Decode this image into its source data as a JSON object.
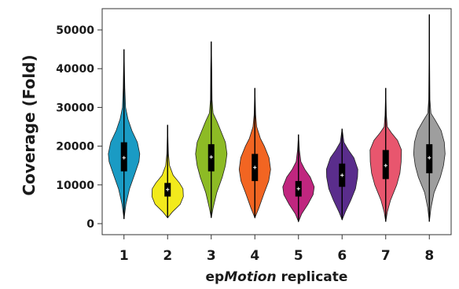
{
  "chart_data": {
    "type": "violin",
    "title": "",
    "xlabel_prefix": "ep",
    "xlabel_italic": "Motion",
    "xlabel_suffix": " replicate",
    "ylabel": "Coverage (Fold)",
    "ylim": [
      -2500,
      55000
    ],
    "yticks": [
      0,
      10000,
      20000,
      30000,
      40000,
      50000
    ],
    "ytick_labels": [
      "0",
      "10000",
      "20000",
      "30000",
      "40000",
      "50000"
    ],
    "grid": false,
    "categories": [
      "1",
      "2",
      "3",
      "4",
      "5",
      "6",
      "7",
      "8"
    ],
    "series": [
      {
        "category": "1",
        "color": "#1a9bc4",
        "min": 1200,
        "max": 45000,
        "q1": 13500,
        "median": 17000,
        "q3": 21000,
        "mean": 17000,
        "density": [
          [
            1200,
            0
          ],
          [
            5000,
            0.12
          ],
          [
            9000,
            0.35
          ],
          [
            13000,
            0.7
          ],
          [
            16000,
            0.95
          ],
          [
            18000,
            1.0
          ],
          [
            21000,
            0.85
          ],
          [
            24000,
            0.5
          ],
          [
            27000,
            0.25
          ],
          [
            30000,
            0.1
          ],
          [
            35000,
            0.05
          ],
          [
            40000,
            0.03
          ],
          [
            45000,
            0
          ]
        ]
      },
      {
        "category": "2",
        "color": "#f2ea1c",
        "min": 1500,
        "max": 25500,
        "q1": 7000,
        "median": 8500,
        "q3": 10500,
        "mean": 8800,
        "density": [
          [
            1500,
            0
          ],
          [
            3000,
            0.3
          ],
          [
            5000,
            0.8
          ],
          [
            7000,
            1.0
          ],
          [
            9000,
            0.98
          ],
          [
            10500,
            0.75
          ],
          [
            12500,
            0.35
          ],
          [
            15000,
            0.12
          ],
          [
            18000,
            0.05
          ],
          [
            21000,
            0.03
          ],
          [
            25500,
            0
          ]
        ]
      },
      {
        "category": "3",
        "color": "#8dbb25",
        "min": 1500,
        "max": 47000,
        "q1": 13500,
        "median": 17000,
        "q3": 20500,
        "mean": 17200,
        "density": [
          [
            1500,
            0
          ],
          [
            4000,
            0.12
          ],
          [
            8000,
            0.35
          ],
          [
            12000,
            0.7
          ],
          [
            15000,
            0.9
          ],
          [
            18000,
            1.0
          ],
          [
            21000,
            0.9
          ],
          [
            24000,
            0.6
          ],
          [
            26500,
            0.35
          ],
          [
            28500,
            0.12
          ],
          [
            32000,
            0.05
          ],
          [
            40000,
            0.03
          ],
          [
            47000,
            0
          ]
        ]
      },
      {
        "category": "4",
        "color": "#f26522",
        "min": 1500,
        "max": 35000,
        "q1": 11000,
        "median": 14500,
        "q3": 18000,
        "mean": 14500,
        "density": [
          [
            1500,
            0
          ],
          [
            4000,
            0.25
          ],
          [
            8000,
            0.6
          ],
          [
            11000,
            0.88
          ],
          [
            14000,
            1.0
          ],
          [
            17000,
            0.9
          ],
          [
            20000,
            0.6
          ],
          [
            22000,
            0.35
          ],
          [
            25000,
            0.12
          ],
          [
            28000,
            0.05
          ],
          [
            35000,
            0
          ]
        ]
      },
      {
        "category": "5",
        "color": "#c0267f",
        "min": 500,
        "max": 23000,
        "q1": 7000,
        "median": 9000,
        "q3": 11000,
        "mean": 9000,
        "density": [
          [
            500,
            0
          ],
          [
            2500,
            0.2
          ],
          [
            5000,
            0.6
          ],
          [
            7500,
            0.93
          ],
          [
            9500,
            1.0
          ],
          [
            12000,
            0.75
          ],
          [
            14000,
            0.4
          ],
          [
            16000,
            0.15
          ],
          [
            19000,
            0.06
          ],
          [
            23000,
            0
          ]
        ]
      },
      {
        "category": "6",
        "color": "#5a2d8c",
        "min": 1000,
        "max": 24500,
        "q1": 9500,
        "median": 12500,
        "q3": 15500,
        "mean": 12500,
        "density": [
          [
            1000,
            0
          ],
          [
            3000,
            0.2
          ],
          [
            6000,
            0.55
          ],
          [
            9000,
            0.85
          ],
          [
            12000,
            0.98
          ],
          [
            14000,
            1.0
          ],
          [
            17000,
            0.75
          ],
          [
            19000,
            0.4
          ],
          [
            21000,
            0.12
          ],
          [
            24500,
            0
          ]
        ]
      },
      {
        "category": "7",
        "color": "#e8566e",
        "min": 500,
        "max": 35000,
        "q1": 11500,
        "median": 15500,
        "q3": 19000,
        "mean": 15000,
        "density": [
          [
            500,
            0
          ],
          [
            3000,
            0.1
          ],
          [
            6000,
            0.3
          ],
          [
            10000,
            0.7
          ],
          [
            13000,
            0.9
          ],
          [
            16000,
            0.98
          ],
          [
            19000,
            1.0
          ],
          [
            21500,
            0.75
          ],
          [
            23500,
            0.35
          ],
          [
            25000,
            0.1
          ],
          [
            28000,
            0.04
          ],
          [
            35000,
            0
          ]
        ]
      },
      {
        "category": "8",
        "color": "#9e9e9e",
        "min": 500,
        "max": 54000,
        "q1": 13000,
        "median": 17000,
        "q3": 20500,
        "mean": 17000,
        "density": [
          [
            500,
            0
          ],
          [
            4000,
            0.1
          ],
          [
            8000,
            0.3
          ],
          [
            12000,
            0.7
          ],
          [
            15000,
            0.9
          ],
          [
            18000,
            1.0
          ],
          [
            21000,
            0.95
          ],
          [
            24000,
            0.75
          ],
          [
            26500,
            0.4
          ],
          [
            28500,
            0.1
          ],
          [
            32000,
            0.04
          ],
          [
            42000,
            0.02
          ],
          [
            54000,
            0
          ]
        ]
      }
    ]
  }
}
